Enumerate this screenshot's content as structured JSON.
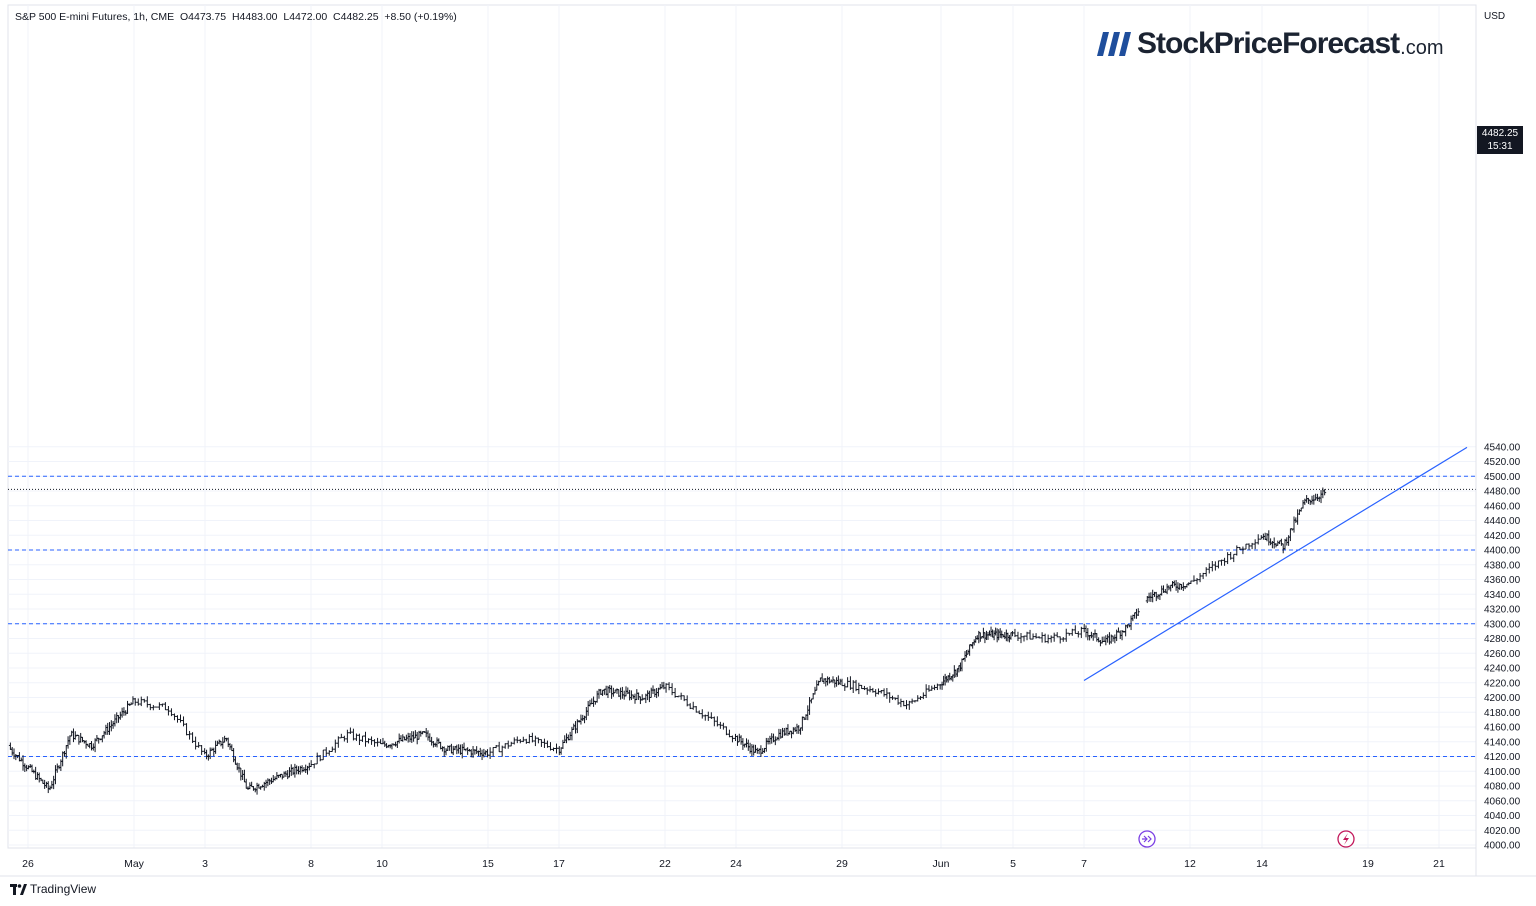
{
  "header": {
    "symbol_line": "S&P 500 E-mini Futures, 1h, CME",
    "ohlc": {
      "open_label": "O",
      "open": "4473.75",
      "high_label": "H",
      "high": "4483.00",
      "low_label": "L",
      "low": "4472.00",
      "close_label": "C",
      "close": "4482.25",
      "change": "+8.50 (+0.19%)"
    }
  },
  "currency": "USD",
  "logo": {
    "main": "StockPriceForecast",
    "domain": ".com"
  },
  "brand": "TradingView",
  "last_price": {
    "value": "4482.25",
    "countdown": "15:31"
  },
  "colors": {
    "bars": "#131722",
    "levels": "#2962ff",
    "trendline": "#2962ff",
    "event_icon": "#7b3fe4",
    "grid": "#f0f3fa"
  },
  "chart_data": {
    "type": "ohlc",
    "title": "S&P 500 E-mini Futures, 1h, CME",
    "ylim": [
      3995,
      4555
    ],
    "y_ticks": [
      "4000.00",
      "4020.00",
      "4040.00",
      "4060.00",
      "4080.00",
      "4100.00",
      "4120.00",
      "4140.00",
      "4160.00",
      "4180.00",
      "4200.00",
      "4220.00",
      "4240.00",
      "4260.00",
      "4280.00",
      "4300.00",
      "4320.00",
      "4340.00",
      "4360.00",
      "4380.00",
      "4400.00",
      "4420.00",
      "4440.00",
      "4460.00",
      "4480.00",
      "4500.00",
      "4520.00",
      "4540.00"
    ],
    "x_ticks": [
      "26",
      "May",
      "3",
      "8",
      "10",
      "15",
      "17",
      "22",
      "24",
      "29",
      "Jun",
      "5",
      "7",
      "12",
      "14",
      "19",
      "21"
    ],
    "horizontal_levels": [
      4120,
      4300,
      4400,
      4500
    ],
    "current_price_line": 4482.25,
    "trendline": {
      "from": [
        "Jun 7",
        4223
      ],
      "to": [
        "Jun 21",
        4512
      ]
    },
    "event_icons": [
      "dividend-icon",
      "flash-icon"
    ],
    "series_waypoints": [
      [
        "Apr 25",
        4135
      ],
      [
        "Apr 26",
        4105
      ],
      [
        "Apr 27",
        4075
      ],
      [
        "Apr 28",
        4150
      ],
      [
        "Apr 29",
        4135
      ],
      [
        "May 1",
        4195
      ],
      [
        "May 2",
        4185
      ],
      [
        "May 3",
        4120
      ],
      [
        "May 4",
        4145
      ],
      [
        "May 5",
        4075
      ],
      [
        "May 8",
        4110
      ],
      [
        "May 9",
        4150
      ],
      [
        "May 10",
        4135
      ],
      [
        "May 12",
        4150
      ],
      [
        "May 13",
        4130
      ],
      [
        "May 15",
        4125
      ],
      [
        "May 16",
        4145
      ],
      [
        "May 17",
        4130
      ],
      [
        "May 18",
        4170
      ],
      [
        "May 19",
        4210
      ],
      [
        "May 21",
        4200
      ],
      [
        "May 22",
        4215
      ],
      [
        "May 24",
        4145
      ],
      [
        "May 25",
        4125
      ],
      [
        "May 26",
        4150
      ],
      [
        "May 27",
        4160
      ],
      [
        "May 28",
        4225
      ],
      [
        "May 29",
        4220
      ],
      [
        "May 30",
        4210
      ],
      [
        "May 31",
        4190
      ],
      [
        "Jun 1",
        4220
      ],
      [
        "Jun 2",
        4240
      ],
      [
        "Jun 3",
        4285
      ],
      [
        "Jun 5",
        4285
      ],
      [
        "Jun 6",
        4280
      ],
      [
        "Jun 7",
        4290
      ],
      [
        "Jun 8",
        4275
      ],
      [
        "Jun 9",
        4295
      ],
      [
        "Jun 10",
        4335
      ],
      [
        "Jun 11",
        4350
      ],
      [
        "Jun 12",
        4355
      ],
      [
        "Jun 13",
        4390
      ],
      [
        "Jun 14",
        4420
      ],
      [
        "Jun 15",
        4405
      ],
      [
        "Jun 16",
        4465
      ],
      [
        "Jun 17",
        4478
      ]
    ]
  }
}
